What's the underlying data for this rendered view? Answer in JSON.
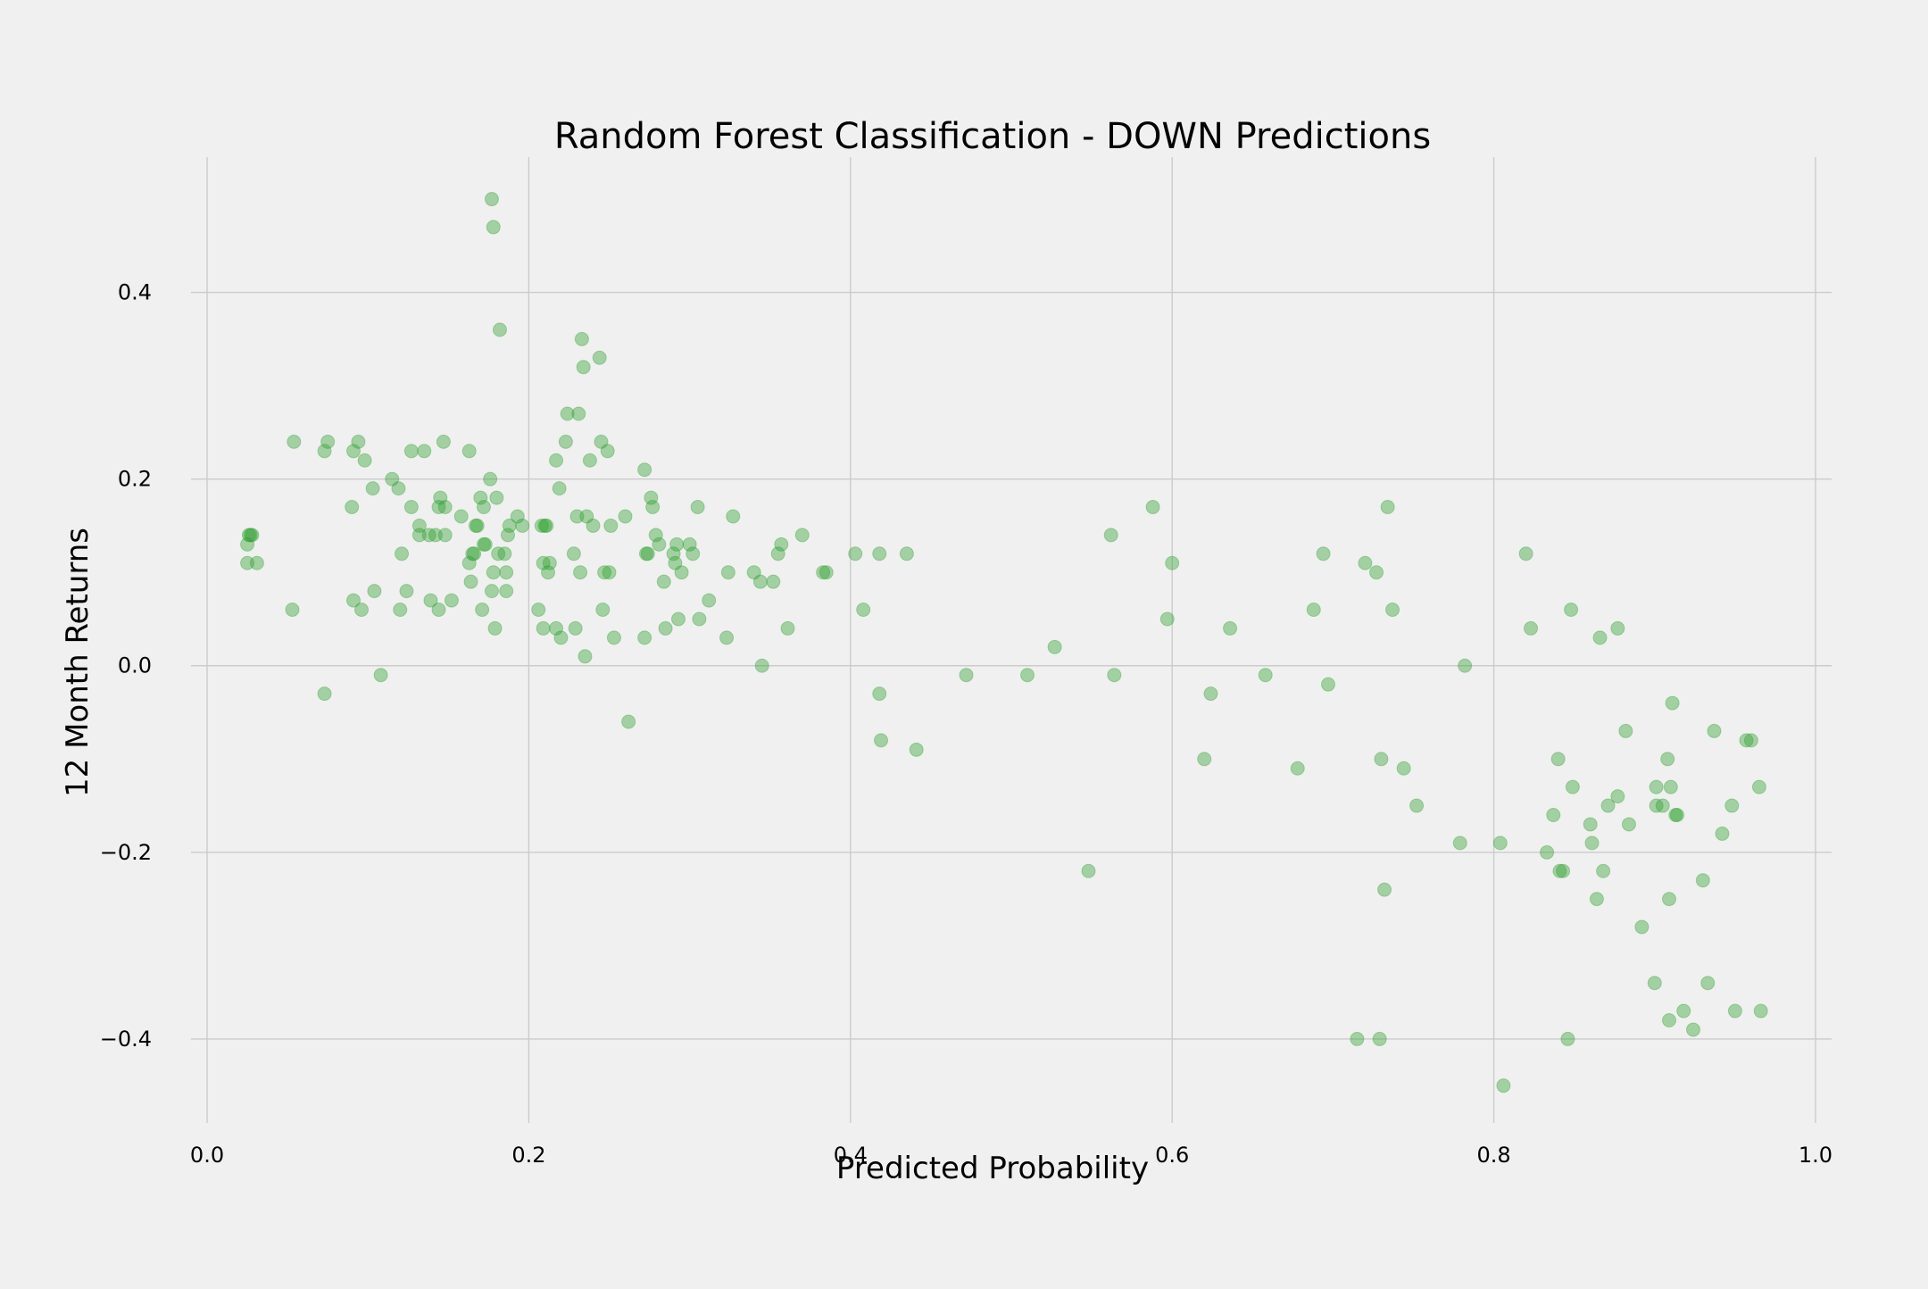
{
  "chart_data": {
    "type": "scatter",
    "title": "Random Forest Classification - DOWN Predictions",
    "xlabel": "Predicted Probability",
    "ylabel": "12 Month Returns",
    "xlim": [
      -0.01,
      1.01
    ],
    "ylim": [
      -0.49,
      0.545
    ],
    "xticks": [
      0.0,
      0.2,
      0.4,
      0.6,
      0.8,
      1.0
    ],
    "xtick_labels": [
      "0.0",
      "0.2",
      "0.4",
      "0.6",
      "0.8",
      "1.0"
    ],
    "yticks": [
      -0.4,
      -0.2,
      0.0,
      0.2,
      0.4
    ],
    "ytick_labels": [
      "−0.4",
      "−0.2",
      "0.0",
      "0.2",
      "0.4"
    ],
    "grid": true,
    "legend": "none",
    "marker_color": "#2ca02c",
    "marker_alpha": 0.4,
    "background": "#f0f0f0",
    "grid_color": "#cbcbcb",
    "series": [
      {
        "points": [
          [
            0.025,
            0.13
          ],
          [
            0.025,
            0.11
          ],
          [
            0.026,
            0.14
          ],
          [
            0.027,
            0.14
          ],
          [
            0.028,
            0.14
          ],
          [
            0.031,
            0.11
          ],
          [
            0.053,
            0.06
          ],
          [
            0.054,
            0.24
          ],
          [
            0.073,
            0.23
          ],
          [
            0.073,
            -0.03
          ],
          [
            0.075,
            0.24
          ],
          [
            0.09,
            0.17
          ],
          [
            0.091,
            0.23
          ],
          [
            0.091,
            0.07
          ],
          [
            0.094,
            0.24
          ],
          [
            0.096,
            0.06
          ],
          [
            0.098,
            0.22
          ],
          [
            0.103,
            0.19
          ],
          [
            0.104,
            0.08
          ],
          [
            0.108,
            -0.01
          ],
          [
            0.115,
            0.2
          ],
          [
            0.119,
            0.19
          ],
          [
            0.12,
            0.06
          ],
          [
            0.121,
            0.12
          ],
          [
            0.124,
            0.08
          ],
          [
            0.127,
            0.23
          ],
          [
            0.127,
            0.17
          ],
          [
            0.132,
            0.14
          ],
          [
            0.132,
            0.15
          ],
          [
            0.135,
            0.23
          ],
          [
            0.138,
            0.14
          ],
          [
            0.139,
            0.07
          ],
          [
            0.142,
            0.14
          ],
          [
            0.144,
            0.17
          ],
          [
            0.144,
            0.06
          ],
          [
            0.145,
            0.18
          ],
          [
            0.147,
            0.24
          ],
          [
            0.148,
            0.14
          ],
          [
            0.148,
            0.17
          ],
          [
            0.152,
            0.07
          ],
          [
            0.158,
            0.16
          ],
          [
            0.163,
            0.23
          ],
          [
            0.163,
            0.11
          ],
          [
            0.164,
            0.09
          ],
          [
            0.165,
            0.12
          ],
          [
            0.166,
            0.12
          ],
          [
            0.167,
            0.15
          ],
          [
            0.168,
            0.15
          ],
          [
            0.17,
            0.18
          ],
          [
            0.171,
            0.06
          ],
          [
            0.172,
            0.13
          ],
          [
            0.172,
            0.17
          ],
          [
            0.173,
            0.13
          ],
          [
            0.176,
            0.2
          ],
          [
            0.177,
            0.5
          ],
          [
            0.177,
            0.08
          ],
          [
            0.178,
            0.47
          ],
          [
            0.178,
            0.1
          ],
          [
            0.179,
            0.04
          ],
          [
            0.18,
            0.18
          ],
          [
            0.181,
            0.12
          ],
          [
            0.182,
            0.36
          ],
          [
            0.185,
            0.12
          ],
          [
            0.186,
            0.1
          ],
          [
            0.186,
            0.08
          ],
          [
            0.187,
            0.14
          ],
          [
            0.188,
            0.15
          ],
          [
            0.193,
            0.16
          ],
          [
            0.196,
            0.15
          ],
          [
            0.206,
            0.06
          ],
          [
            0.208,
            0.15
          ],
          [
            0.209,
            0.11
          ],
          [
            0.209,
            0.04
          ],
          [
            0.21,
            0.15
          ],
          [
            0.211,
            0.15
          ],
          [
            0.212,
            0.1
          ],
          [
            0.213,
            0.11
          ],
          [
            0.217,
            0.04
          ],
          [
            0.217,
            0.22
          ],
          [
            0.219,
            0.19
          ],
          [
            0.22,
            0.03
          ],
          [
            0.223,
            0.24
          ],
          [
            0.224,
            0.27
          ],
          [
            0.228,
            0.12
          ],
          [
            0.229,
            0.04
          ],
          [
            0.23,
            0.16
          ],
          [
            0.231,
            0.27
          ],
          [
            0.232,
            0.1
          ],
          [
            0.233,
            0.35
          ],
          [
            0.234,
            0.32
          ],
          [
            0.235,
            0.01
          ],
          [
            0.236,
            0.16
          ],
          [
            0.238,
            0.22
          ],
          [
            0.24,
            0.15
          ],
          [
            0.244,
            0.33
          ],
          [
            0.245,
            0.24
          ],
          [
            0.246,
            0.06
          ],
          [
            0.247,
            0.1
          ],
          [
            0.249,
            0.23
          ],
          [
            0.25,
            0.1
          ],
          [
            0.251,
            0.15
          ],
          [
            0.253,
            0.03
          ],
          [
            0.26,
            0.16
          ],
          [
            0.262,
            -0.06
          ],
          [
            0.272,
            0.21
          ],
          [
            0.272,
            0.03
          ],
          [
            0.273,
            0.12
          ],
          [
            0.274,
            0.12
          ],
          [
            0.276,
            0.18
          ],
          [
            0.277,
            0.17
          ],
          [
            0.279,
            0.14
          ],
          [
            0.281,
            0.13
          ],
          [
            0.284,
            0.09
          ],
          [
            0.285,
            0.04
          ],
          [
            0.29,
            0.12
          ],
          [
            0.291,
            0.11
          ],
          [
            0.292,
            0.13
          ],
          [
            0.293,
            0.05
          ],
          [
            0.295,
            0.1
          ],
          [
            0.3,
            0.13
          ],
          [
            0.302,
            0.12
          ],
          [
            0.305,
            0.17
          ],
          [
            0.306,
            0.05
          ],
          [
            0.312,
            0.07
          ],
          [
            0.323,
            0.03
          ],
          [
            0.324,
            0.1
          ],
          [
            0.327,
            0.16
          ],
          [
            0.34,
            0.1
          ],
          [
            0.344,
            0.09
          ],
          [
            0.345,
            0.0
          ],
          [
            0.352,
            0.09
          ],
          [
            0.355,
            0.12
          ],
          [
            0.357,
            0.13
          ],
          [
            0.361,
            0.04
          ],
          [
            0.37,
            0.14
          ],
          [
            0.383,
            0.1
          ],
          [
            0.385,
            0.1
          ],
          [
            0.403,
            0.12
          ],
          [
            0.408,
            0.06
          ],
          [
            0.418,
            0.12
          ],
          [
            0.418,
            -0.03
          ],
          [
            0.419,
            -0.08
          ],
          [
            0.435,
            0.12
          ],
          [
            0.441,
            -0.09
          ],
          [
            0.472,
            -0.01
          ],
          [
            0.51,
            -0.01
          ],
          [
            0.527,
            0.02
          ],
          [
            0.548,
            -0.22
          ],
          [
            0.562,
            0.14
          ],
          [
            0.564,
            -0.01
          ],
          [
            0.588,
            0.17
          ],
          [
            0.597,
            0.05
          ],
          [
            0.6,
            0.11
          ],
          [
            0.62,
            -0.1
          ],
          [
            0.624,
            -0.03
          ],
          [
            0.636,
            0.04
          ],
          [
            0.658,
            -0.01
          ],
          [
            0.678,
            -0.11
          ],
          [
            0.688,
            0.06
          ],
          [
            0.694,
            0.12
          ],
          [
            0.697,
            -0.02
          ],
          [
            0.715,
            -0.4
          ],
          [
            0.72,
            0.11
          ],
          [
            0.727,
            0.1
          ],
          [
            0.729,
            -0.4
          ],
          [
            0.73,
            -0.1
          ],
          [
            0.732,
            -0.24
          ],
          [
            0.734,
            0.17
          ],
          [
            0.737,
            0.06
          ],
          [
            0.744,
            -0.11
          ],
          [
            0.752,
            -0.15
          ],
          [
            0.779,
            -0.19
          ],
          [
            0.782,
            0.0
          ],
          [
            0.804,
            -0.19
          ],
          [
            0.806,
            -0.45
          ],
          [
            0.82,
            0.12
          ],
          [
            0.823,
            0.04
          ],
          [
            0.833,
            -0.2
          ],
          [
            0.837,
            -0.16
          ],
          [
            0.84,
            -0.1
          ],
          [
            0.841,
            -0.22
          ],
          [
            0.843,
            -0.22
          ],
          [
            0.846,
            -0.4
          ],
          [
            0.848,
            0.06
          ],
          [
            0.849,
            -0.13
          ],
          [
            0.86,
            -0.17
          ],
          [
            0.861,
            -0.19
          ],
          [
            0.864,
            -0.25
          ],
          [
            0.866,
            0.03
          ],
          [
            0.868,
            -0.22
          ],
          [
            0.871,
            -0.15
          ],
          [
            0.877,
            -0.14
          ],
          [
            0.877,
            0.04
          ],
          [
            0.882,
            -0.07
          ],
          [
            0.884,
            -0.17
          ],
          [
            0.892,
            -0.28
          ],
          [
            0.9,
            -0.34
          ],
          [
            0.901,
            -0.13
          ],
          [
            0.901,
            -0.15
          ],
          [
            0.905,
            -0.15
          ],
          [
            0.908,
            -0.1
          ],
          [
            0.909,
            -0.38
          ],
          [
            0.909,
            -0.25
          ],
          [
            0.91,
            -0.13
          ],
          [
            0.911,
            -0.04
          ],
          [
            0.913,
            -0.16
          ],
          [
            0.914,
            -0.16
          ],
          [
            0.918,
            -0.37
          ],
          [
            0.924,
            -0.39
          ],
          [
            0.93,
            -0.23
          ],
          [
            0.933,
            -0.34
          ],
          [
            0.937,
            -0.07
          ],
          [
            0.942,
            -0.18
          ],
          [
            0.948,
            -0.15
          ],
          [
            0.95,
            -0.37
          ],
          [
            0.957,
            -0.08
          ],
          [
            0.96,
            -0.08
          ],
          [
            0.965,
            -0.13
          ],
          [
            0.966,
            -0.37
          ]
        ]
      }
    ]
  }
}
